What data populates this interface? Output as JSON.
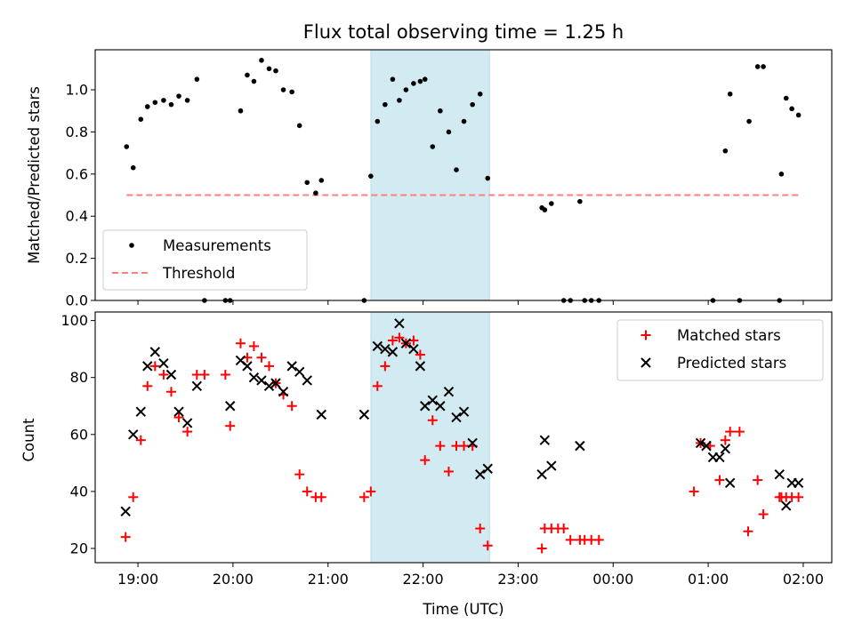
{
  "chart_data": [
    {
      "type": "scatter",
      "title": "Flux total observing time = 1.25 h",
      "xlabel": "",
      "ylabel": "Matched/Predicted stars",
      "ylim": [
        0,
        1.19
      ],
      "yticks": [
        0.0,
        0.2,
        0.4,
        0.6,
        0.8,
        1.0
      ],
      "ytick_labels": [
        "0.0",
        "0.2",
        "0.4",
        "0.6",
        "0.8",
        "1.0"
      ],
      "xlim": [
        18.55,
        26.3
      ],
      "xticks": [
        19,
        20,
        21,
        22,
        23,
        24,
        25,
        26
      ],
      "shaded_region": {
        "x": [
          21.45,
          22.7
        ],
        "color": "#add8e6"
      },
      "threshold": {
        "name": "Threshold",
        "y": 0.5,
        "x": [
          18.88,
          25.95
        ],
        "color": "#ff7f7f"
      },
      "legend": {
        "location": "lower left",
        "entries": [
          "Measurements",
          "Threshold"
        ]
      },
      "series": [
        {
          "name": "Measurements",
          "marker": "dot",
          "color": "#000000",
          "x": [
            18.88,
            18.95,
            19.03,
            19.1,
            19.18,
            19.27,
            19.35,
            19.43,
            19.52,
            19.62,
            19.7,
            19.92,
            19.97,
            20.08,
            20.15,
            20.22,
            20.3,
            20.38,
            20.45,
            20.53,
            20.62,
            20.7,
            20.78,
            20.87,
            20.93,
            21.38,
            21.45,
            21.52,
            21.6,
            21.68,
            21.75,
            21.82,
            21.9,
            21.97,
            22.02,
            22.1,
            22.18,
            22.27,
            22.35,
            22.43,
            22.52,
            22.6,
            22.68,
            23.25,
            23.28,
            23.35,
            23.48,
            23.55,
            23.65,
            23.7,
            23.77,
            23.85,
            25.05,
            25.18,
            25.23,
            25.33,
            25.43,
            25.52,
            25.58,
            25.75,
            25.77,
            25.82,
            25.88,
            25.95
          ],
          "y": [
            0.73,
            0.63,
            0.86,
            0.92,
            0.94,
            0.95,
            0.93,
            0.97,
            0.95,
            1.05,
            0.0,
            0.0,
            0.0,
            0.9,
            1.07,
            1.04,
            1.14,
            1.1,
            1.09,
            1.0,
            0.99,
            0.83,
            0.56,
            0.51,
            0.57,
            0.0,
            0.59,
            0.85,
            0.93,
            1.05,
            0.95,
            1.0,
            1.03,
            1.04,
            1.05,
            0.73,
            0.9,
            0.8,
            0.62,
            0.85,
            0.93,
            0.98,
            0.58,
            0.44,
            0.43,
            0.46,
            0.0,
            0.0,
            0.47,
            0.0,
            0.0,
            0.0,
            0.0,
            0.71,
            0.98,
            0.0,
            0.85,
            1.11,
            1.11,
            0.0,
            0.6,
            0.96,
            0.91,
            0.88
          ]
        }
      ]
    },
    {
      "type": "scatter",
      "title": "",
      "xlabel": "Time (UTC)",
      "ylabel": "Count",
      "ylim": [
        15,
        103
      ],
      "yticks": [
        20,
        40,
        60,
        80,
        100
      ],
      "ytick_labels": [
        "20",
        "40",
        "60",
        "80",
        "100"
      ],
      "xlim": [
        18.55,
        26.3
      ],
      "xticks": [
        19,
        20,
        21,
        22,
        23,
        24,
        25,
        26
      ],
      "xtick_labels": [
        "19:00",
        "20:00",
        "21:00",
        "22:00",
        "23:00",
        "00:00",
        "01:00",
        "02:00"
      ],
      "shaded_region": {
        "x": [
          21.45,
          22.7
        ],
        "color": "#add8e6"
      },
      "legend": {
        "location": "upper right",
        "entries": [
          "Matched stars",
          "Predicted stars"
        ]
      },
      "series": [
        {
          "name": "Matched stars",
          "marker": "plus",
          "color": "#ff0000",
          "x": [
            18.87,
            18.95,
            19.03,
            19.1,
            19.18,
            19.27,
            19.35,
            19.43,
            19.52,
            19.62,
            19.7,
            19.92,
            19.97,
            20.08,
            20.15,
            20.22,
            20.3,
            20.38,
            20.45,
            20.53,
            20.62,
            20.7,
            20.78,
            20.87,
            20.93,
            21.38,
            21.45,
            21.52,
            21.6,
            21.68,
            21.75,
            21.82,
            21.9,
            21.97,
            22.02,
            22.1,
            22.18,
            22.27,
            22.35,
            22.43,
            22.52,
            22.6,
            22.68,
            23.25,
            23.28,
            23.35,
            23.42,
            23.48,
            23.55,
            23.65,
            23.7,
            23.77,
            23.85,
            24.85,
            24.92,
            25.02,
            25.12,
            25.18,
            25.23,
            25.33,
            25.42,
            25.52,
            25.58,
            25.75,
            25.77,
            25.82,
            25.88,
            25.95
          ],
          "y": [
            24,
            38,
            58,
            77,
            84,
            81,
            75,
            66,
            61,
            81,
            81,
            81,
            63,
            92,
            87,
            91,
            87,
            84,
            78,
            74,
            70,
            46,
            40,
            38,
            38,
            38,
            40,
            77,
            84,
            93,
            94,
            92,
            93,
            88,
            51,
            65,
            56,
            47,
            56,
            56,
            56,
            27,
            21,
            20,
            27,
            27,
            27,
            27,
            23,
            23,
            23,
            23,
            23,
            40,
            57,
            56,
            44,
            58,
            61,
            61,
            26,
            44,
            32,
            38,
            38,
            38,
            38,
            38
          ]
        },
        {
          "name": "Predicted stars",
          "marker": "x",
          "color": "#000000",
          "x": [
            18.87,
            18.95,
            19.03,
            19.1,
            19.18,
            19.27,
            19.35,
            19.43,
            19.52,
            19.62,
            19.97,
            20.08,
            20.15,
            20.22,
            20.3,
            20.38,
            20.45,
            20.53,
            20.62,
            20.7,
            20.78,
            20.93,
            21.38,
            21.52,
            21.6,
            21.68,
            21.75,
            21.82,
            21.9,
            21.97,
            22.02,
            22.1,
            22.18,
            22.27,
            22.35,
            22.43,
            22.52,
            22.6,
            22.68,
            23.25,
            23.28,
            23.35,
            23.65,
            24.92,
            24.98,
            25.05,
            25.12,
            25.18,
            25.23,
            25.75,
            25.82,
            25.88,
            25.95
          ],
          "y": [
            33,
            60,
            68,
            84,
            89,
            85,
            81,
            68,
            64,
            77,
            70,
            86,
            84,
            80,
            79,
            77,
            78,
            75,
            84,
            82,
            79,
            67,
            67,
            91,
            90,
            89,
            99,
            92,
            90,
            84,
            70,
            72,
            70,
            75,
            66,
            68,
            57,
            46,
            48,
            46,
            58,
            49,
            56,
            57,
            56,
            52,
            52,
            55,
            43,
            46,
            35,
            43,
            43
          ]
        }
      ]
    }
  ]
}
